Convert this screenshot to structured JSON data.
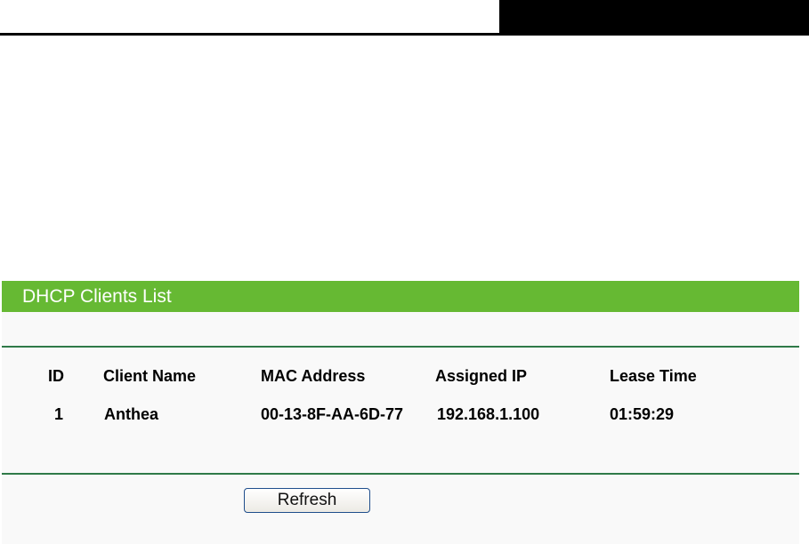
{
  "section_title": "DHCP Clients List",
  "table": {
    "headers": [
      "ID",
      "Client Name",
      "MAC Address",
      "Assigned IP",
      "Lease Time"
    ],
    "rows": [
      [
        "1",
        "Anthea",
        "00-13-8F-AA-6D-77",
        "192.168.1.100",
        "01:59:29"
      ]
    ]
  },
  "refresh_label": "Refresh",
  "colors": {
    "header_bar": "#66b933",
    "divider": "#2f7a48"
  }
}
